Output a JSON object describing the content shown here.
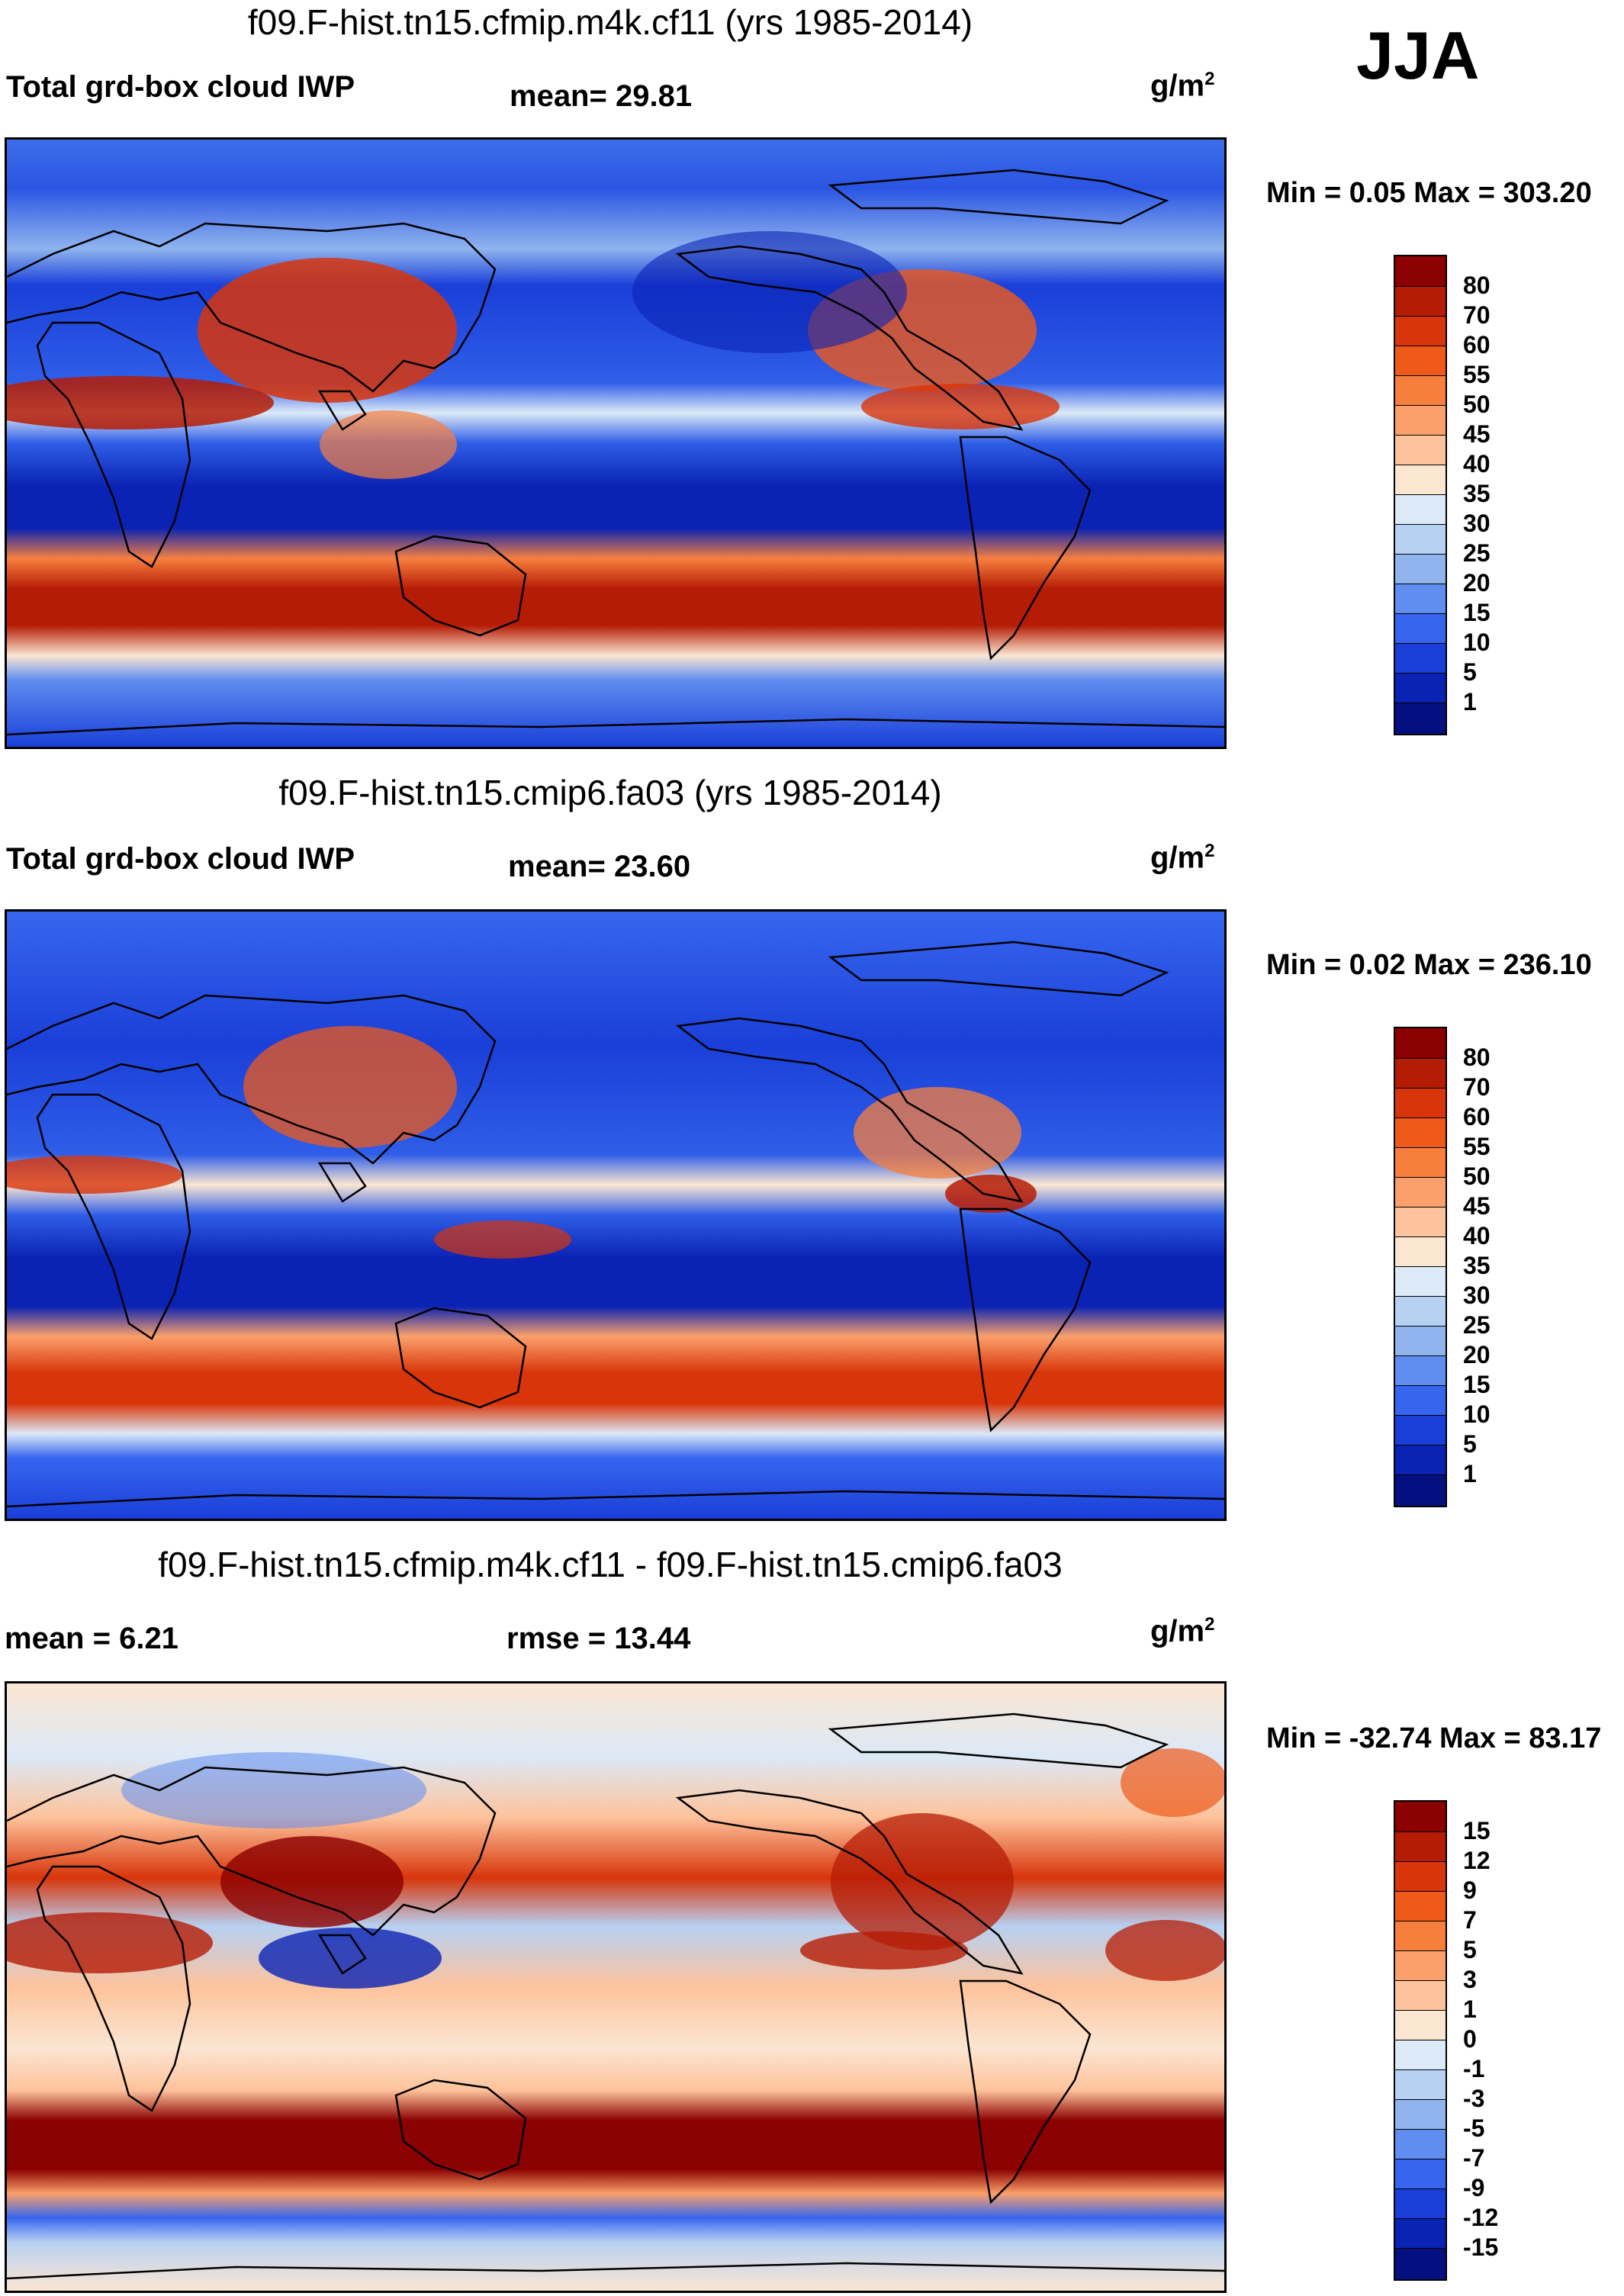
{
  "season": "JJA",
  "units": {
    "base": "g/m",
    "exp": "2"
  },
  "panels": [
    {
      "title": "f09.F-hist.tn15.cfmip.m4k.cf11 (yrs 1985-2014)",
      "left_label": "Total grd-box cloud IWP",
      "stat1": "mean=  29.81",
      "stat2": "",
      "minmax": "Min =   0.05 Max = 303.20",
      "colorbar": {
        "labels": [
          "80",
          "70",
          "60",
          "55",
          "50",
          "45",
          "40",
          "35",
          "30",
          "25",
          "20",
          "15",
          "10",
          "5",
          "1"
        ],
        "colors": [
          "#8b0000",
          "#b51c05",
          "#d8350a",
          "#ef5a1a",
          "#f77f3e",
          "#fba06a",
          "#fdc39c",
          "#fbe6d2",
          "#dce9f7",
          "#b7d1f2",
          "#8fb4ee",
          "#5f8ef0",
          "#3765ef",
          "#1a3fd9",
          "#0a23b4",
          "#040f80"
        ]
      }
    },
    {
      "title": "f09.F-hist.tn15.cmip6.fa03 (yrs 1985-2014)",
      "left_label": "Total grd-box cloud IWP",
      "stat1": "mean=  23.60",
      "stat2": "",
      "minmax": "Min =   0.02 Max = 236.10",
      "colorbar": {
        "labels": [
          "80",
          "70",
          "60",
          "55",
          "50",
          "45",
          "40",
          "35",
          "30",
          "25",
          "20",
          "15",
          "10",
          "5",
          "1"
        ],
        "colors": [
          "#8b0000",
          "#b51c05",
          "#d8350a",
          "#ef5a1a",
          "#f77f3e",
          "#fba06a",
          "#fdc39c",
          "#fbe6d2",
          "#dce9f7",
          "#b7d1f2",
          "#8fb4ee",
          "#5f8ef0",
          "#3765ef",
          "#1a3fd9",
          "#0a23b4",
          "#040f80"
        ]
      }
    },
    {
      "title": "f09.F-hist.tn15.cfmip.m4k.cf11 - f09.F-hist.tn15.cmip6.fa03",
      "left_label": "mean =   6.21",
      "stat1": "rmse =  13.44",
      "stat2": "",
      "minmax": "Min = -32.74 Max =  83.17",
      "colorbar": {
        "labels": [
          "15",
          "12",
          "9",
          "7",
          "5",
          "3",
          "1",
          "0",
          "-1",
          "-3",
          "-5",
          "-7",
          "-9",
          "-12",
          "-15"
        ],
        "colors": [
          "#8b0000",
          "#b51c05",
          "#d8350a",
          "#ef5a1a",
          "#f77f3e",
          "#fba06a",
          "#fdc39c",
          "#fbe6d2",
          "#dce9f7",
          "#b7d1f2",
          "#8fb4ee",
          "#5f8ef0",
          "#3765ef",
          "#1a3fd9",
          "#0a23b4",
          "#040f80"
        ]
      }
    }
  ]
}
